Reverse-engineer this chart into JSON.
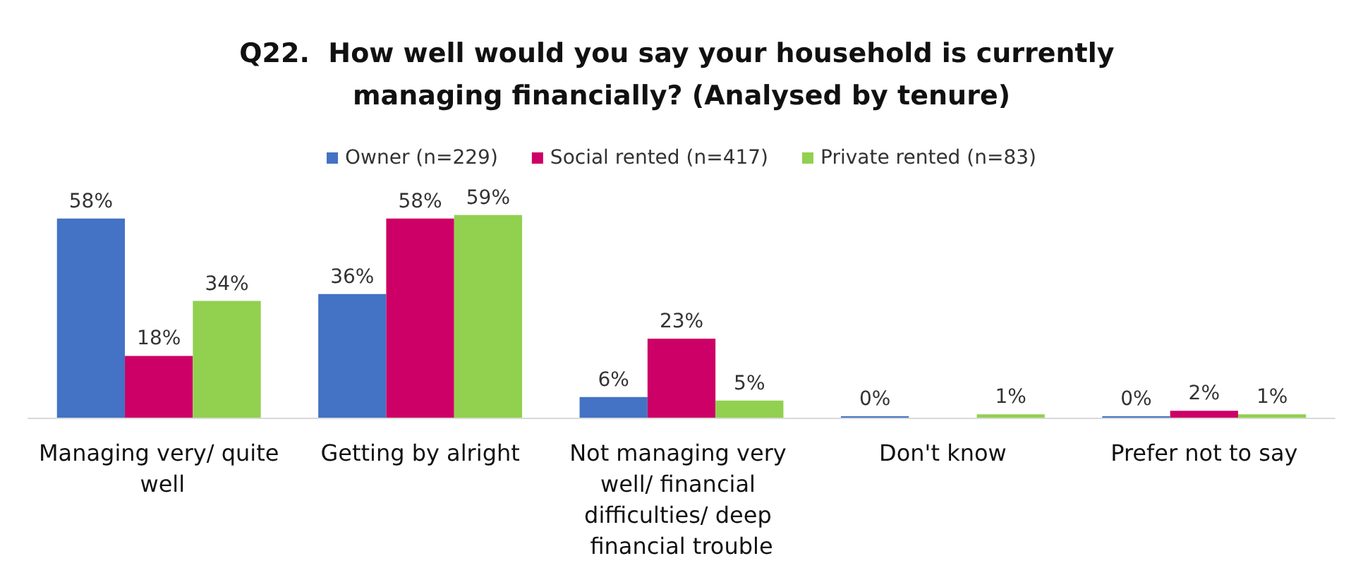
{
  "chart_data": {
    "type": "bar",
    "title": "Q22.  How well would you say your household is currently managing financially? (Analysed by tenure)",
    "categories": [
      "Managing very/ quite well",
      "Getting by alright",
      "Not managing very well/ financial difficulties/ deep financial trouble",
      "Don't know",
      "Prefer not to say"
    ],
    "series": [
      {
        "name": "Owner (n=229)",
        "color": "#4472c4",
        "values": [
          58,
          36,
          6,
          0,
          0
        ],
        "value_labels": [
          "58%",
          "36%",
          "6%",
          "0%",
          "0%"
        ]
      },
      {
        "name": "Social rented (n=417)",
        "color": "#cc0066",
        "values": [
          18,
          58,
          23,
          null,
          2
        ],
        "value_labels": [
          "18%",
          "58%",
          "23%",
          null,
          "2%"
        ]
      },
      {
        "name": "Private rented (n=83)",
        "color": "#92d050",
        "values": [
          34,
          59,
          5,
          1,
          1
        ],
        "value_labels": [
          "34%",
          "59%",
          "5%",
          "1%",
          "1%"
        ]
      }
    ],
    "legend": "top",
    "grid": false
  }
}
